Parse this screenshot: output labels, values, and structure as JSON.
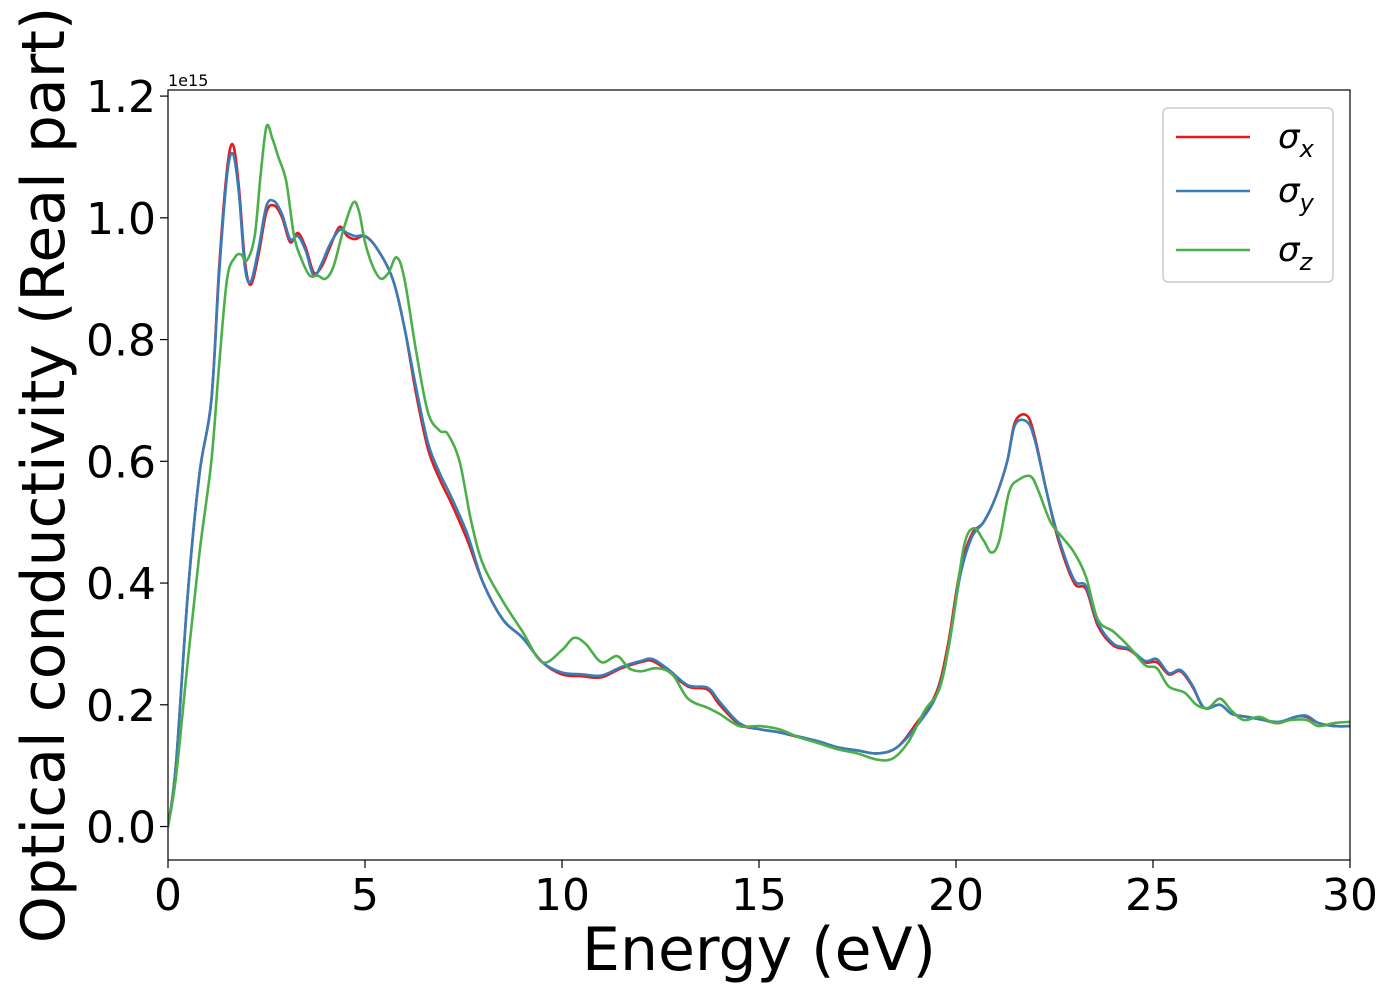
{
  "chart_data": {
    "type": "line",
    "xlabel": "Energy (eV)",
    "ylabel": "Optical conductivity (Real part)",
    "offset_text": "1e15",
    "xlim": [
      0,
      30
    ],
    "ylim": [
      -0.055,
      1.21
    ],
    "xticks": [
      0,
      5,
      10,
      15,
      20,
      25,
      30
    ],
    "xtick_labels": [
      "0",
      "5",
      "10",
      "15",
      "20",
      "25",
      "30"
    ],
    "yticks": [
      0.0,
      0.2,
      0.4,
      0.6,
      0.8,
      1.0,
      1.2
    ],
    "ytick_labels": [
      "0.0",
      "0.2",
      "0.4",
      "0.6",
      "0.8",
      "1.0",
      "1.2"
    ],
    "y_scale_note": "values in units of 1e15",
    "grid": false,
    "legend_position": "top-right",
    "series": [
      {
        "name": "σx",
        "sub": "x",
        "color": "#e41a1c",
        "points": [
          [
            0,
            0.0
          ],
          [
            0.2,
            0.1
          ],
          [
            0.5,
            0.38
          ],
          [
            0.8,
            0.58
          ],
          [
            1.1,
            0.7
          ],
          [
            1.3,
            0.92
          ],
          [
            1.5,
            1.08
          ],
          [
            1.65,
            1.12
          ],
          [
            1.8,
            1.05
          ],
          [
            1.95,
            0.93
          ],
          [
            2.1,
            0.89
          ],
          [
            2.3,
            0.94
          ],
          [
            2.5,
            1.01
          ],
          [
            2.7,
            1.02
          ],
          [
            2.9,
            1.0
          ],
          [
            3.1,
            0.96
          ],
          [
            3.3,
            0.975
          ],
          [
            3.5,
            0.95
          ],
          [
            3.7,
            0.91
          ],
          [
            3.9,
            0.92
          ],
          [
            4.1,
            0.95
          ],
          [
            4.35,
            0.985
          ],
          [
            4.55,
            0.97
          ],
          [
            4.75,
            0.965
          ],
          [
            5.0,
            0.97
          ],
          [
            5.3,
            0.95
          ],
          [
            5.7,
            0.9
          ],
          [
            6.0,
            0.82
          ],
          [
            6.3,
            0.71
          ],
          [
            6.6,
            0.62
          ],
          [
            6.9,
            0.57
          ],
          [
            7.2,
            0.53
          ],
          [
            7.6,
            0.47
          ],
          [
            8.0,
            0.4
          ],
          [
            8.5,
            0.34
          ],
          [
            9.0,
            0.31
          ],
          [
            9.5,
            0.27
          ],
          [
            10.0,
            0.25
          ],
          [
            10.5,
            0.247
          ],
          [
            11.0,
            0.245
          ],
          [
            11.5,
            0.26
          ],
          [
            12.0,
            0.27
          ],
          [
            12.3,
            0.272
          ],
          [
            12.7,
            0.255
          ],
          [
            13.2,
            0.23
          ],
          [
            13.7,
            0.225
          ],
          [
            14.0,
            0.2
          ],
          [
            14.5,
            0.168
          ],
          [
            15.0,
            0.16
          ],
          [
            15.5,
            0.155
          ],
          [
            16.0,
            0.147
          ],
          [
            16.5,
            0.14
          ],
          [
            17.0,
            0.13
          ],
          [
            17.5,
            0.125
          ],
          [
            18.0,
            0.12
          ],
          [
            18.5,
            0.13
          ],
          [
            19.0,
            0.17
          ],
          [
            19.5,
            0.22
          ],
          [
            19.8,
            0.3
          ],
          [
            20.1,
            0.42
          ],
          [
            20.4,
            0.48
          ],
          [
            20.7,
            0.5
          ],
          [
            21.0,
            0.54
          ],
          [
            21.3,
            0.6
          ],
          [
            21.5,
            0.665
          ],
          [
            21.8,
            0.675
          ],
          [
            22.0,
            0.64
          ],
          [
            22.3,
            0.55
          ],
          [
            22.6,
            0.47
          ],
          [
            23.0,
            0.4
          ],
          [
            23.3,
            0.39
          ],
          [
            23.6,
            0.33
          ],
          [
            24.0,
            0.297
          ],
          [
            24.4,
            0.29
          ],
          [
            24.8,
            0.27
          ],
          [
            25.1,
            0.27
          ],
          [
            25.4,
            0.25
          ],
          [
            25.7,
            0.255
          ],
          [
            26.0,
            0.23
          ],
          [
            26.3,
            0.195
          ],
          [
            26.7,
            0.2
          ],
          [
            27.0,
            0.185
          ],
          [
            27.4,
            0.18
          ],
          [
            27.8,
            0.175
          ],
          [
            28.2,
            0.17
          ],
          [
            28.6,
            0.18
          ],
          [
            28.9,
            0.18
          ],
          [
            29.2,
            0.17
          ],
          [
            29.6,
            0.165
          ],
          [
            30.0,
            0.165
          ]
        ]
      },
      {
        "name": "σy",
        "sub": "y",
        "color": "#377eb8",
        "points": [
          [
            0,
            0.0
          ],
          [
            0.2,
            0.1
          ],
          [
            0.5,
            0.38
          ],
          [
            0.8,
            0.58
          ],
          [
            1.1,
            0.7
          ],
          [
            1.3,
            0.91
          ],
          [
            1.5,
            1.07
          ],
          [
            1.65,
            1.105
          ],
          [
            1.8,
            1.04
          ],
          [
            1.95,
            0.92
          ],
          [
            2.1,
            0.895
          ],
          [
            2.3,
            0.95
          ],
          [
            2.5,
            1.02
          ],
          [
            2.7,
            1.027
          ],
          [
            2.9,
            1.005
          ],
          [
            3.1,
            0.965
          ],
          [
            3.3,
            0.97
          ],
          [
            3.5,
            0.945
          ],
          [
            3.7,
            0.905
          ],
          [
            3.9,
            0.925
          ],
          [
            4.1,
            0.955
          ],
          [
            4.35,
            0.98
          ],
          [
            4.55,
            0.975
          ],
          [
            4.75,
            0.97
          ],
          [
            5.0,
            0.97
          ],
          [
            5.3,
            0.95
          ],
          [
            5.7,
            0.9
          ],
          [
            6.0,
            0.82
          ],
          [
            6.3,
            0.72
          ],
          [
            6.6,
            0.63
          ],
          [
            6.9,
            0.58
          ],
          [
            7.2,
            0.54
          ],
          [
            7.6,
            0.48
          ],
          [
            8.0,
            0.4
          ],
          [
            8.5,
            0.34
          ],
          [
            9.0,
            0.31
          ],
          [
            9.5,
            0.27
          ],
          [
            10.0,
            0.253
          ],
          [
            10.5,
            0.25
          ],
          [
            11.0,
            0.248
          ],
          [
            11.5,
            0.262
          ],
          [
            12.0,
            0.272
          ],
          [
            12.3,
            0.275
          ],
          [
            12.7,
            0.258
          ],
          [
            13.2,
            0.232
          ],
          [
            13.7,
            0.228
          ],
          [
            14.0,
            0.205
          ],
          [
            14.5,
            0.17
          ],
          [
            15.0,
            0.16
          ],
          [
            15.5,
            0.155
          ],
          [
            16.0,
            0.148
          ],
          [
            16.5,
            0.14
          ],
          [
            17.0,
            0.13
          ],
          [
            17.5,
            0.125
          ],
          [
            18.0,
            0.12
          ],
          [
            18.5,
            0.13
          ],
          [
            19.0,
            0.165
          ],
          [
            19.5,
            0.215
          ],
          [
            19.8,
            0.29
          ],
          [
            20.1,
            0.41
          ],
          [
            20.4,
            0.475
          ],
          [
            20.7,
            0.5
          ],
          [
            21.0,
            0.54
          ],
          [
            21.3,
            0.6
          ],
          [
            21.5,
            0.66
          ],
          [
            21.8,
            0.665
          ],
          [
            22.0,
            0.635
          ],
          [
            22.3,
            0.55
          ],
          [
            22.6,
            0.475
          ],
          [
            23.0,
            0.405
          ],
          [
            23.3,
            0.395
          ],
          [
            23.6,
            0.335
          ],
          [
            24.0,
            0.3
          ],
          [
            24.4,
            0.292
          ],
          [
            24.8,
            0.272
          ],
          [
            25.1,
            0.275
          ],
          [
            25.4,
            0.252
          ],
          [
            25.7,
            0.257
          ],
          [
            26.0,
            0.232
          ],
          [
            26.3,
            0.195
          ],
          [
            26.7,
            0.2
          ],
          [
            27.0,
            0.185
          ],
          [
            27.4,
            0.18
          ],
          [
            27.8,
            0.175
          ],
          [
            28.2,
            0.172
          ],
          [
            28.6,
            0.18
          ],
          [
            28.9,
            0.182
          ],
          [
            29.2,
            0.17
          ],
          [
            29.6,
            0.165
          ],
          [
            30.0,
            0.165
          ]
        ]
      },
      {
        "name": "σz",
        "sub": "z",
        "color": "#4daf4a",
        "points": [
          [
            0,
            0.0
          ],
          [
            0.2,
            0.08
          ],
          [
            0.5,
            0.27
          ],
          [
            0.8,
            0.45
          ],
          [
            1.1,
            0.6
          ],
          [
            1.3,
            0.76
          ],
          [
            1.5,
            0.9
          ],
          [
            1.7,
            0.935
          ],
          [
            1.85,
            0.94
          ],
          [
            2.0,
            0.93
          ],
          [
            2.2,
            0.97
          ],
          [
            2.35,
            1.07
          ],
          [
            2.5,
            1.15
          ],
          [
            2.65,
            1.13
          ],
          [
            2.8,
            1.1
          ],
          [
            3.0,
            1.06
          ],
          [
            3.2,
            0.97
          ],
          [
            3.4,
            0.93
          ],
          [
            3.6,
            0.905
          ],
          [
            3.8,
            0.905
          ],
          [
            4.0,
            0.9
          ],
          [
            4.2,
            0.92
          ],
          [
            4.45,
            0.98
          ],
          [
            4.7,
            1.025
          ],
          [
            4.85,
            1.01
          ],
          [
            5.0,
            0.96
          ],
          [
            5.2,
            0.92
          ],
          [
            5.4,
            0.9
          ],
          [
            5.6,
            0.91
          ],
          [
            5.8,
            0.935
          ],
          [
            6.0,
            0.9
          ],
          [
            6.3,
            0.78
          ],
          [
            6.6,
            0.68
          ],
          [
            6.9,
            0.65
          ],
          [
            7.1,
            0.645
          ],
          [
            7.4,
            0.6
          ],
          [
            7.7,
            0.5
          ],
          [
            8.0,
            0.43
          ],
          [
            8.5,
            0.37
          ],
          [
            9.0,
            0.32
          ],
          [
            9.5,
            0.27
          ],
          [
            10.0,
            0.29
          ],
          [
            10.3,
            0.31
          ],
          [
            10.6,
            0.3
          ],
          [
            11.0,
            0.27
          ],
          [
            11.4,
            0.28
          ],
          [
            11.7,
            0.26
          ],
          [
            12.0,
            0.255
          ],
          [
            12.4,
            0.26
          ],
          [
            12.8,
            0.25
          ],
          [
            13.2,
            0.21
          ],
          [
            13.7,
            0.195
          ],
          [
            14.0,
            0.185
          ],
          [
            14.5,
            0.165
          ],
          [
            15.0,
            0.165
          ],
          [
            15.5,
            0.16
          ],
          [
            16.0,
            0.147
          ],
          [
            16.5,
            0.137
          ],
          [
            17.0,
            0.127
          ],
          [
            17.5,
            0.12
          ],
          [
            18.0,
            0.11
          ],
          [
            18.4,
            0.112
          ],
          [
            18.8,
            0.14
          ],
          [
            19.2,
            0.19
          ],
          [
            19.6,
            0.23
          ],
          [
            19.9,
            0.33
          ],
          [
            20.2,
            0.46
          ],
          [
            20.45,
            0.49
          ],
          [
            20.7,
            0.47
          ],
          [
            20.9,
            0.45
          ],
          [
            21.1,
            0.47
          ],
          [
            21.35,
            0.55
          ],
          [
            21.6,
            0.57
          ],
          [
            21.9,
            0.575
          ],
          [
            22.1,
            0.55
          ],
          [
            22.4,
            0.5
          ],
          [
            22.7,
            0.475
          ],
          [
            23.0,
            0.45
          ],
          [
            23.3,
            0.41
          ],
          [
            23.6,
            0.34
          ],
          [
            24.0,
            0.32
          ],
          [
            24.4,
            0.295
          ],
          [
            24.8,
            0.265
          ],
          [
            25.1,
            0.26
          ],
          [
            25.4,
            0.23
          ],
          [
            25.8,
            0.22
          ],
          [
            26.1,
            0.2
          ],
          [
            26.4,
            0.195
          ],
          [
            26.7,
            0.21
          ],
          [
            27.0,
            0.19
          ],
          [
            27.3,
            0.175
          ],
          [
            27.7,
            0.18
          ],
          [
            28.1,
            0.17
          ],
          [
            28.5,
            0.175
          ],
          [
            28.9,
            0.175
          ],
          [
            29.2,
            0.165
          ],
          [
            29.6,
            0.17
          ],
          [
            30.0,
            0.172
          ]
        ]
      }
    ]
  }
}
